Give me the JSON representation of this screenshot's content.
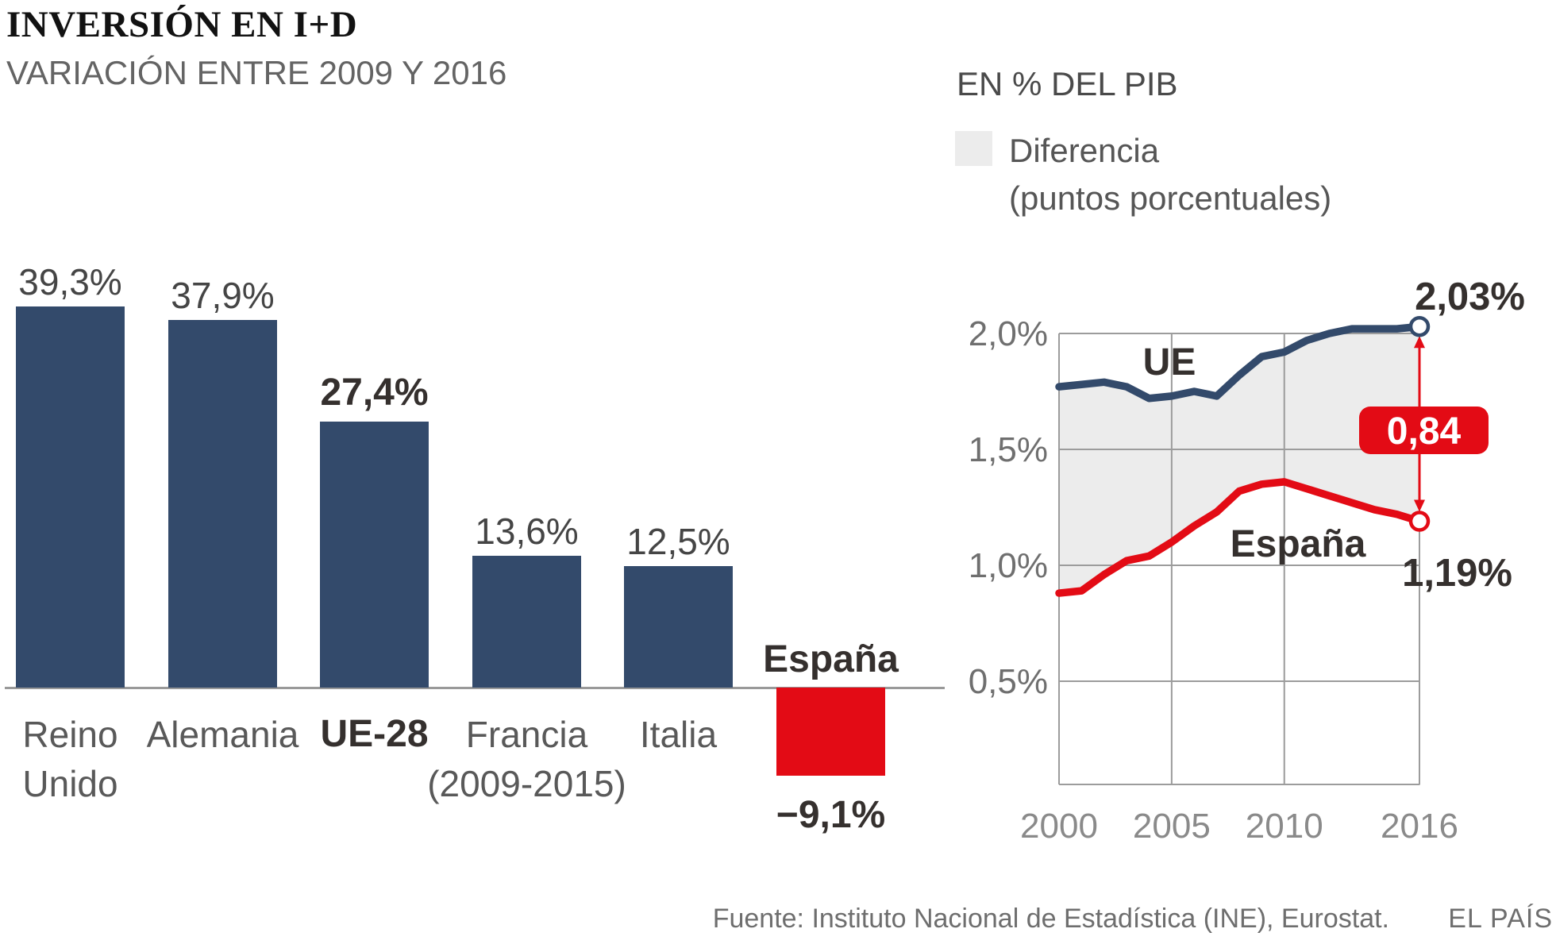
{
  "header": {
    "title": "INVERSIÓN EN I+D",
    "subtitle_left": "VARIACIÓN ENTRE 2009 Y 2016",
    "subtitle_right": "EN % DEL PIB"
  },
  "colors": {
    "navy": "#334a6b",
    "red": "#e30b15",
    "charcoal": "#35302e",
    "light_gray": "#ececec",
    "grid": "#9c9c9c",
    "axis_line": "#999999"
  },
  "chart_data": [
    {
      "type": "bar",
      "title": "VARIACIÓN ENTRE 2009 Y 2016",
      "categories": [
        "Reino Unido",
        "Alemania",
        "UE-28",
        "Francia (2009-2015)",
        "Italia",
        "España"
      ],
      "category_lines": [
        [
          "Reino",
          "Unido"
        ],
        [
          "Alemania"
        ],
        [
          "UE-28"
        ],
        [
          "Francia",
          "(2009-2015)"
        ],
        [
          "Italia"
        ],
        [
          "España"
        ]
      ],
      "slugs": [
        "reino-unido",
        "alemania",
        "ue-28",
        "francia",
        "italia",
        "espana"
      ],
      "values": [
        39.3,
        37.9,
        27.4,
        13.6,
        12.5,
        -9.1
      ],
      "value_labels": [
        "39,3%",
        "37,9%",
        "27,4%",
        "13,6%",
        "12,5%",
        "−9,1%"
      ],
      "emphasis": [
        false,
        false,
        true,
        false,
        false,
        true
      ],
      "bar_colors": [
        "#334a6b",
        "#334a6b",
        "#334a6b",
        "#334a6b",
        "#334a6b",
        "#e30b15"
      ],
      "xlabel": "",
      "ylabel": "",
      "unit": "%"
    },
    {
      "type": "line",
      "title": "EN % DEL PIB",
      "legend_line1": "Diferencia",
      "legend_line2": "(puntos porcentuales)",
      "x": [
        2000,
        2001,
        2002,
        2003,
        2004,
        2005,
        2006,
        2007,
        2008,
        2009,
        2010,
        2011,
        2012,
        2013,
        2014,
        2015,
        2016
      ],
      "series": [
        {
          "name": "UE",
          "color": "#334a6b",
          "end_label": "2,03%",
          "values": [
            1.77,
            1.78,
            1.79,
            1.77,
            1.72,
            1.73,
            1.75,
            1.73,
            1.82,
            1.9,
            1.92,
            1.97,
            2.0,
            2.02,
            2.02,
            2.02,
            2.03
          ]
        },
        {
          "name": "España",
          "color": "#e30b15",
          "end_label": "1,19%",
          "values": [
            0.88,
            0.89,
            0.96,
            1.02,
            1.04,
            1.1,
            1.17,
            1.23,
            1.32,
            1.35,
            1.36,
            1.33,
            1.3,
            1.27,
            1.24,
            1.22,
            1.19
          ]
        }
      ],
      "difference_label": "0,84",
      "difference_points": 0.84,
      "y_ticks": [
        "2,0%",
        "1,5%",
        "1,0%",
        "0,5%"
      ],
      "y_tick_values": [
        2.0,
        1.5,
        1.0,
        0.5
      ],
      "x_ticks": [
        "2000",
        "2005",
        "2010",
        "2016"
      ],
      "x_tick_values": [
        2000,
        2005,
        2010,
        2016
      ],
      "xlim": [
        2000,
        2016
      ],
      "ylim": [
        0.05,
        2.1
      ],
      "grid": true,
      "legend_position": "top-right",
      "area_fill_between": true
    }
  ],
  "footer": {
    "source": "Fuente: Instituto Nacional de Estadística (INE), Eurostat.",
    "brand": "EL PAÍS"
  }
}
